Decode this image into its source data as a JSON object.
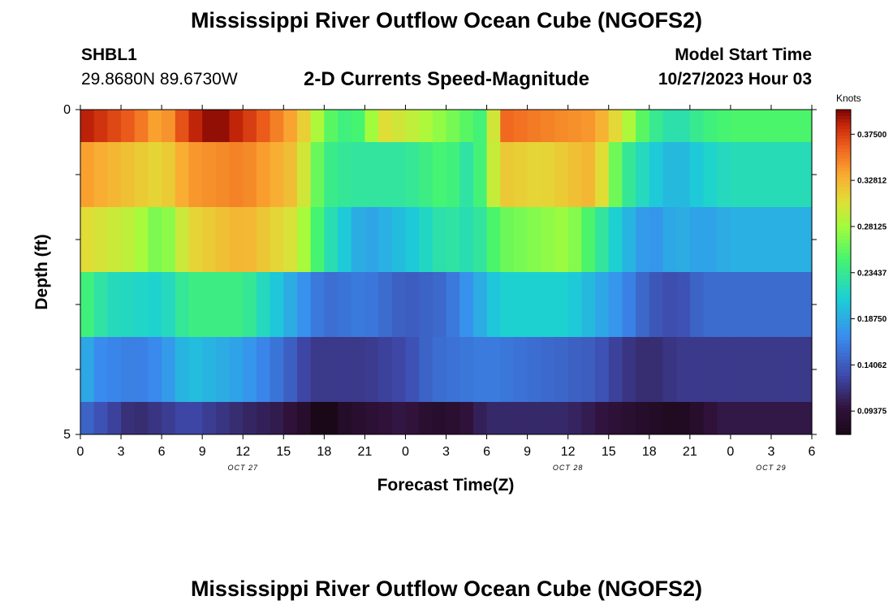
{
  "header": {
    "title": "Mississippi River Outflow Ocean Cube (NGOFS2)",
    "station": "SHBL1",
    "coordinates": "29.8680N  89.6730W",
    "subtitle": "2-D Currents Speed-Magnitude",
    "model_start_label": "Model Start Time",
    "model_start_value": "10/27/2023 Hour 03"
  },
  "footer": {
    "title": "Mississippi River Outflow Ocean Cube (NGOFS2)"
  },
  "chart_data": {
    "type": "heatmap",
    "title": "2-D Currents Speed-Magnitude",
    "xlabel": "Forecast Time(Z)",
    "ylabel": "Depth (ft)",
    "x_tick_labels": [
      "0",
      "3",
      "6",
      "9",
      "12",
      "15",
      "18",
      "21",
      "0",
      "3",
      "6",
      "9",
      "12",
      "15",
      "18",
      "21",
      "0",
      "3",
      "6"
    ],
    "x_range_hours": [
      0,
      54
    ],
    "date_labels": [
      {
        "text": "OCT 27",
        "hour": 12
      },
      {
        "text": "OCT 28",
        "hour": 36
      },
      {
        "text": "OCT 29",
        "hour": 51
      }
    ],
    "y_tick_labels": [
      "0",
      "5"
    ],
    "ylim": [
      0,
      5
    ],
    "colorbar": {
      "title": "Knots",
      "tick_labels": [
        "0.37500",
        "0.32812",
        "0.28125",
        "0.23437",
        "0.18750",
        "0.14062",
        "0.09375"
      ],
      "range": [
        0.07,
        0.4
      ]
    },
    "layers": [
      {
        "depth_range": [
          0,
          0.5
        ],
        "keyframes": [
          [
            0,
            0.39
          ],
          [
            4,
            0.36
          ],
          [
            6,
            0.33
          ],
          [
            8,
            0.38
          ],
          [
            10,
            0.4
          ],
          [
            13,
            0.37
          ],
          [
            16,
            0.33
          ],
          [
            19,
            0.24
          ],
          [
            21,
            0.25
          ],
          [
            22,
            0.31
          ],
          [
            25,
            0.29
          ],
          [
            28,
            0.26
          ],
          [
            30,
            0.24
          ],
          [
            31,
            0.36
          ],
          [
            34,
            0.35
          ],
          [
            38,
            0.34
          ],
          [
            40,
            0.3
          ],
          [
            42,
            0.24
          ],
          [
            44,
            0.22
          ],
          [
            46,
            0.24
          ],
          [
            48,
            0.25
          ],
          [
            54,
            0.25
          ]
        ]
      },
      {
        "depth_range": [
          0.5,
          1.5
        ],
        "keyframes": [
          [
            0,
            0.34
          ],
          [
            6,
            0.31
          ],
          [
            8,
            0.34
          ],
          [
            12,
            0.35
          ],
          [
            16,
            0.32
          ],
          [
            18,
            0.24
          ],
          [
            20,
            0.23
          ],
          [
            24,
            0.23
          ],
          [
            27,
            0.25
          ],
          [
            29,
            0.22
          ],
          [
            31,
            0.32
          ],
          [
            34,
            0.31
          ],
          [
            38,
            0.33
          ],
          [
            40,
            0.24
          ],
          [
            42,
            0.21
          ],
          [
            44,
            0.19
          ],
          [
            46,
            0.21
          ],
          [
            48,
            0.22
          ],
          [
            54,
            0.22
          ]
        ]
      },
      {
        "depth_range": [
          1.5,
          2.5
        ],
        "keyframes": [
          [
            0,
            0.31
          ],
          [
            4,
            0.29
          ],
          [
            6,
            0.26
          ],
          [
            8,
            0.31
          ],
          [
            12,
            0.33
          ],
          [
            16,
            0.3
          ],
          [
            18,
            0.23
          ],
          [
            21,
            0.18
          ],
          [
            24,
            0.2
          ],
          [
            27,
            0.23
          ],
          [
            29,
            0.22
          ],
          [
            31,
            0.26
          ],
          [
            36,
            0.28
          ],
          [
            40,
            0.2
          ],
          [
            42,
            0.17
          ],
          [
            44,
            0.19
          ],
          [
            46,
            0.18
          ],
          [
            48,
            0.19
          ],
          [
            54,
            0.19
          ]
        ]
      },
      {
        "depth_range": [
          2.5,
          3.5
        ],
        "keyframes": [
          [
            0,
            0.25
          ],
          [
            2,
            0.22
          ],
          [
            6,
            0.21
          ],
          [
            8,
            0.24
          ],
          [
            12,
            0.24
          ],
          [
            16,
            0.18
          ],
          [
            18,
            0.15
          ],
          [
            21,
            0.16
          ],
          [
            24,
            0.14
          ],
          [
            27,
            0.15
          ],
          [
            29,
            0.18
          ],
          [
            31,
            0.21
          ],
          [
            36,
            0.21
          ],
          [
            40,
            0.17
          ],
          [
            42,
            0.14
          ],
          [
            44,
            0.13
          ],
          [
            46,
            0.15
          ],
          [
            54,
            0.15
          ]
        ]
      },
      {
        "depth_range": [
          3.5,
          4.5
        ],
        "keyframes": [
          [
            0,
            0.2
          ],
          [
            1,
            0.17
          ],
          [
            4,
            0.16
          ],
          [
            6,
            0.17
          ],
          [
            8,
            0.2
          ],
          [
            12,
            0.18
          ],
          [
            15,
            0.15
          ],
          [
            17,
            0.12
          ],
          [
            21,
            0.12
          ],
          [
            24,
            0.13
          ],
          [
            26,
            0.15
          ],
          [
            30,
            0.16
          ],
          [
            34,
            0.15
          ],
          [
            38,
            0.14
          ],
          [
            40,
            0.12
          ],
          [
            42,
            0.11
          ],
          [
            44,
            0.12
          ],
          [
            46,
            0.12
          ],
          [
            54,
            0.12
          ]
        ]
      },
      {
        "depth_range": [
          4.5,
          5.0
        ],
        "keyframes": [
          [
            0,
            0.15
          ],
          [
            1,
            0.14
          ],
          [
            4,
            0.11
          ],
          [
            8,
            0.13
          ],
          [
            12,
            0.11
          ],
          [
            15,
            0.1
          ],
          [
            17,
            0.08
          ],
          [
            18,
            0.05
          ],
          [
            19,
            0.08
          ],
          [
            21,
            0.09
          ],
          [
            24,
            0.1
          ],
          [
            26,
            0.085
          ],
          [
            28,
            0.09
          ],
          [
            30,
            0.11
          ],
          [
            34,
            0.11
          ],
          [
            36,
            0.11
          ],
          [
            40,
            0.09
          ],
          [
            44,
            0.075
          ],
          [
            45,
            0.08
          ],
          [
            47,
            0.1
          ],
          [
            54,
            0.1
          ]
        ]
      }
    ]
  }
}
